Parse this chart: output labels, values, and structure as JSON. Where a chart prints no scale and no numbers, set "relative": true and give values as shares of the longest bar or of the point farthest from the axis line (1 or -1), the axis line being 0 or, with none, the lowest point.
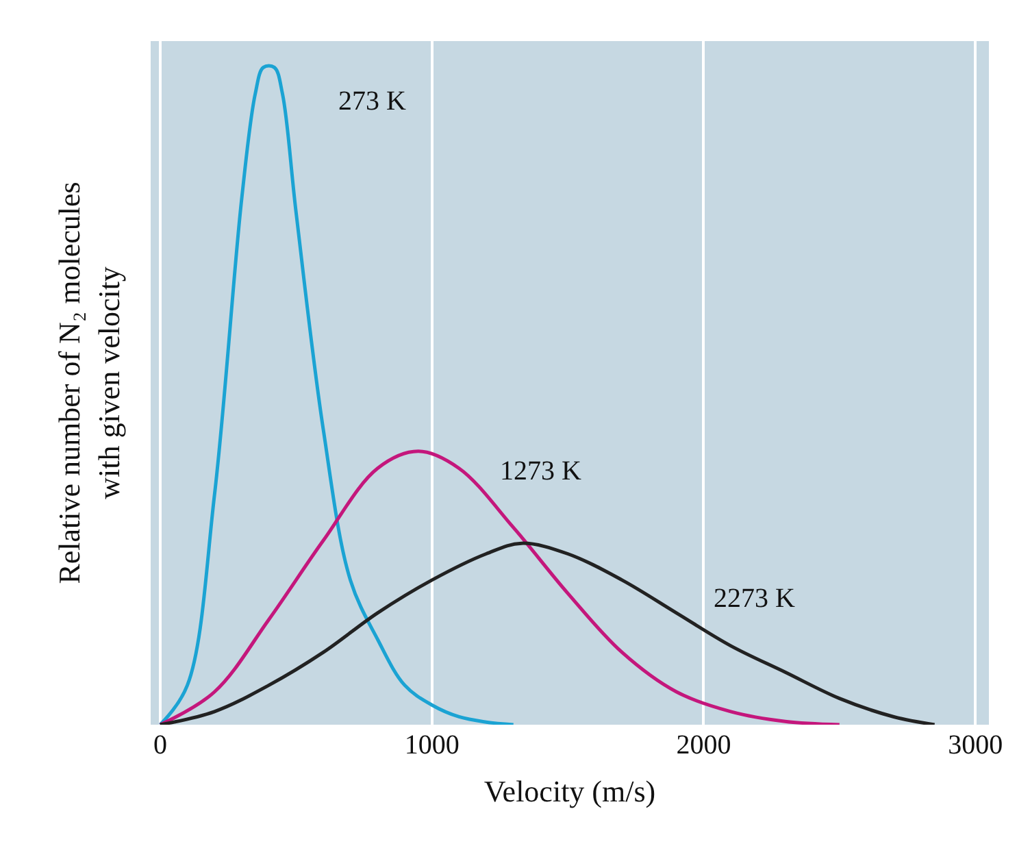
{
  "chart_data": {
    "type": "line",
    "relative": true,
    "xlabel": "Velocity (m/s)",
    "ylabel": "Relative number of N₂ molecules\nwith given velocity",
    "xlim": [
      -35,
      3050
    ],
    "xticks": [
      0,
      1000,
      2000,
      3000
    ],
    "grid": "x",
    "legend": false,
    "marker": "none",
    "line_style": "solid",
    "series": [
      {
        "name": "273 K",
        "color": "#1ba3d3",
        "x": [
          0,
          100,
          200,
          300,
          350,
          380,
          420,
          450,
          500,
          600,
          700,
          800,
          900,
          1000,
          1100,
          1200,
          1300
        ],
        "values": [
          0,
          0.06,
          0.35,
          0.8,
          0.96,
          1.0,
          1.0,
          0.96,
          0.78,
          0.45,
          0.22,
          0.13,
          0.06,
          0.03,
          0.012,
          0.004,
          0
        ]
      },
      {
        "name": "1273 K",
        "color": "#c4177c",
        "x": [
          0,
          200,
          400,
          600,
          800,
          950,
          1100,
          1300,
          1500,
          1700,
          1900,
          2100,
          2300,
          2500
        ],
        "values": [
          0,
          0.05,
          0.16,
          0.28,
          0.39,
          0.416,
          0.39,
          0.3,
          0.2,
          0.11,
          0.05,
          0.02,
          0.005,
          0
        ]
      },
      {
        "name": "2273 K",
        "color": "#222222",
        "x": [
          0,
          200,
          400,
          600,
          800,
          1000,
          1200,
          1330,
          1500,
          1700,
          1900,
          2100,
          2300,
          2500,
          2700,
          2850
        ],
        "values": [
          0,
          0.02,
          0.06,
          0.11,
          0.17,
          0.22,
          0.26,
          0.276,
          0.26,
          0.22,
          0.17,
          0.12,
          0.08,
          0.04,
          0.012,
          0
        ]
      }
    ]
  }
}
